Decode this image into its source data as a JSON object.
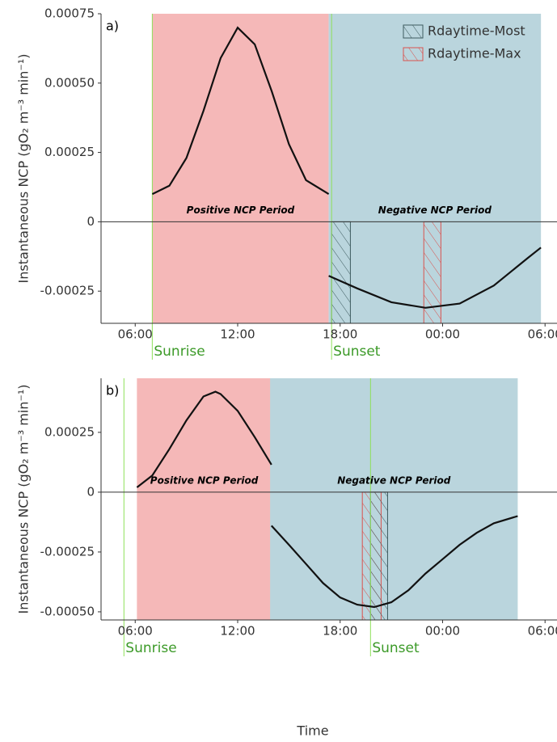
{
  "chart_data": [
    {
      "type": "line",
      "panel_label": "a)",
      "ylabel": "Instantaneous NCP (gO₂ m⁻³ min⁻¹)",
      "xlim": [
        4,
        30.7
      ],
      "xticks": [
        {
          "value": 6,
          "label": "06:00"
        },
        {
          "value": 12,
          "label": "12:00"
        },
        {
          "value": 18,
          "label": "18:00"
        },
        {
          "value": 24,
          "label": "00:00"
        },
        {
          "value": 30,
          "label": "06:00"
        }
      ],
      "ylim": [
        -0.000366,
        0.00075
      ],
      "yticks": [
        {
          "value": -0.00025,
          "label": "-0.00025"
        },
        0,
        0.00025,
        {
          "value": 0.0005,
          "label": "0.00050"
        },
        0.00075
      ],
      "legend": "upper right",
      "periods": [
        {
          "label": "Positive NCP Period",
          "start": 7.0,
          "end": 17.33,
          "color": "#f5b8b8"
        },
        {
          "label": "Negative NCP Period",
          "start": 17.33,
          "end": 29.76,
          "color": "#bad5dd"
        }
      ],
      "events": [
        {
          "label": "Sunrise",
          "x": 7.0,
          "color": "#3c9a28"
        },
        {
          "label": "Sunset",
          "x": 17.5,
          "color": "#3c9a28"
        }
      ],
      "bands": [
        {
          "name": "Rdaytime-Most",
          "start": 17.5,
          "end": 18.6,
          "color": "#3d5a5e"
        },
        {
          "name": "Rdaytime-Max",
          "start": 22.9,
          "end": 23.9,
          "color": "#d9534f"
        }
      ],
      "curves": [
        {
          "color": "#111111",
          "x": [
            7,
            8,
            9,
            10,
            11,
            12,
            13,
            14,
            15,
            16,
            17.33
          ],
          "values": [
            0.0001,
            0.00013,
            0.00023,
            0.0004,
            0.00059,
            0.0007,
            0.00064,
            0.00047,
            0.00028,
            0.00015,
            0.0001
          ]
        },
        {
          "color": "#111111",
          "x": [
            17.33,
            19,
            21,
            23,
            25,
            27,
            29,
            29.76
          ],
          "values": [
            -0.000195,
            -0.00024,
            -0.00029,
            -0.00031,
            -0.000295,
            -0.00023,
            -0.00013,
            -9.3e-05
          ]
        }
      ]
    },
    {
      "type": "line",
      "panel_label": "b)",
      "ylabel": "Instantaneous NCP (gO₂ m⁻³ min⁻¹)",
      "xlabel": "Time",
      "xlim": [
        4,
        30.7
      ],
      "xticks": [
        {
          "value": 6,
          "label": "06:00"
        },
        {
          "value": 12,
          "label": "12:00"
        },
        {
          "value": 18,
          "label": "18:00"
        },
        {
          "value": 24,
          "label": "00:00"
        },
        {
          "value": 30,
          "label": "06:00"
        }
      ],
      "ylim": [
        -0.000534,
        0.000476
      ],
      "yticks": [
        {
          "value": -0.0005,
          "label": "-0.00050"
        },
        -0.00025,
        0,
        0.00025
      ],
      "periods": [
        {
          "label": "Positive NCP Period",
          "start": 6.1,
          "end": 13.98,
          "color": "#f5b8b8"
        },
        {
          "label": "Negative NCP Period",
          "start": 13.9,
          "end": 28.4,
          "color": "#bad5dd"
        }
      ],
      "events": [
        {
          "label": "Sunrise",
          "x": 5.34,
          "color": "#3c9a28"
        },
        {
          "label": "Sunset",
          "x": 19.78,
          "color": "#3c9a28"
        }
      ],
      "bands": [
        {
          "start": 19.3,
          "end": 20.4,
          "color": "#d9534f"
        },
        {
          "start": 19.78,
          "end": 20.78,
          "color": "#3d5a5e"
        }
      ],
      "curves": [
        {
          "color": "#111111",
          "x": [
            6.1,
            7,
            8,
            9,
            10,
            10.7,
            11,
            12,
            13,
            13.98
          ],
          "values": [
            2e-05,
            7e-05,
            0.00018,
            0.0003,
            0.0004,
            0.00042,
            0.00041,
            0.00034,
            0.00023,
            0.000115
          ]
        },
        {
          "color": "#111111",
          "x": [
            13.98,
            15,
            16,
            17,
            18,
            19,
            20,
            21,
            22,
            23,
            24,
            25,
            26,
            27,
            28.4
          ],
          "values": [
            -0.00014,
            -0.00022,
            -0.0003,
            -0.00038,
            -0.00044,
            -0.00047,
            -0.00048,
            -0.00046,
            -0.00041,
            -0.00034,
            -0.00028,
            -0.00022,
            -0.00017,
            -0.00013,
            -0.0001
          ]
        }
      ]
    }
  ]
}
